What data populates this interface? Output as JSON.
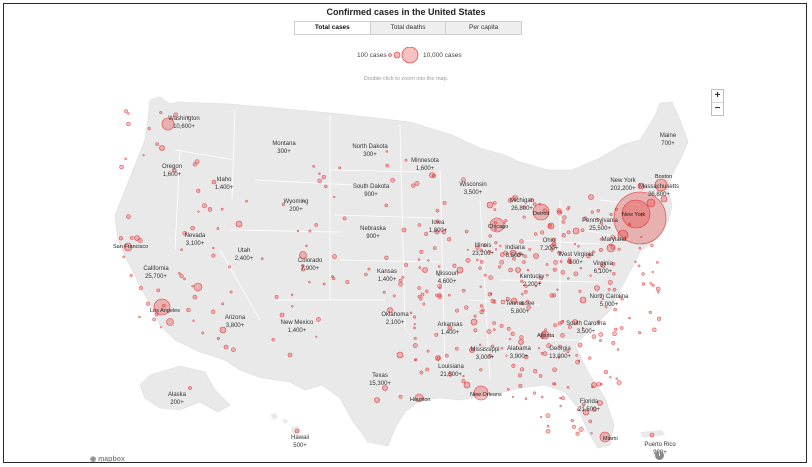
{
  "title": "Confirmed cases in the United States",
  "tabs": [
    {
      "label": "Total cases",
      "active": true
    },
    {
      "label": "Total deaths",
      "active": false
    },
    {
      "label": "Per capita",
      "active": false
    }
  ],
  "legend": {
    "small_label": "100 cases",
    "large_label": "10,000 cases"
  },
  "hint": "Double-click to zoom into the map.",
  "zoom": {
    "in": "+",
    "out": "−"
  },
  "attribution": "mapbox",
  "info": "i",
  "colors": {
    "land": "#e9e9e9",
    "border": "#ffffff",
    "bubble_fill": "rgba(230,50,50,0.30)",
    "bubble_stroke": "#e23b3b",
    "water": "#ffffff"
  },
  "states": [
    {
      "name": "Washington",
      "value": "10,600+"
    },
    {
      "name": "Oregon",
      "value": "1,600+"
    },
    {
      "name": "Idaho",
      "value": "1,400+"
    },
    {
      "name": "Montana",
      "value": "300+"
    },
    {
      "name": "Wyoming",
      "value": "200+"
    },
    {
      "name": "Nevada",
      "value": "3,100+"
    },
    {
      "name": "Utah",
      "value": "2,400+"
    },
    {
      "name": "California",
      "value": "25,700+"
    },
    {
      "name": "Arizona",
      "value": "3,800+"
    },
    {
      "name": "Colorado",
      "value": "7,900+"
    },
    {
      "name": "New Mexico",
      "value": "1,400+"
    },
    {
      "name": "North Dakota",
      "value": "300+"
    },
    {
      "name": "South Dakota",
      "value": "900+"
    },
    {
      "name": "Nebraska",
      "value": "900+"
    },
    {
      "name": "Kansas",
      "value": "1,400+"
    },
    {
      "name": "Oklahoma",
      "value": "2,100+"
    },
    {
      "name": "Texas",
      "value": "15,300+"
    },
    {
      "name": "Minnesota",
      "value": "1,600+"
    },
    {
      "name": "Iowa",
      "value": "1,800+"
    },
    {
      "name": "Missouri",
      "value": "4,600+"
    },
    {
      "name": "Arkansas",
      "value": "1,400+"
    },
    {
      "name": "Louisiana",
      "value": "21,500+"
    },
    {
      "name": "Wisconsin",
      "value": "3,500+"
    },
    {
      "name": "Illinois",
      "value": "23,200+"
    },
    {
      "name": "Michigan",
      "value": "26,800+"
    },
    {
      "name": "Indiana",
      "value": "8,500+"
    },
    {
      "name": "Ohio",
      "value": "7,200+"
    },
    {
      "name": "Kentucky",
      "value": "2,200+"
    },
    {
      "name": "Tennessee",
      "value": "5,800+"
    },
    {
      "name": "Mississippi",
      "value": "3,000+"
    },
    {
      "name": "Alabama",
      "value": "3,900+"
    },
    {
      "name": "Georgia",
      "value": "13,900+"
    },
    {
      "name": "Florida",
      "value": "21,500+"
    },
    {
      "name": "South Carolina",
      "value": "3,500+"
    },
    {
      "name": "North Carolina",
      "value": "5,000+"
    },
    {
      "name": "Virginia",
      "value": "6,100+"
    },
    {
      "name": "West Virginia",
      "value": "600+"
    },
    {
      "name": "Pennsylvania",
      "value": "25,500+"
    },
    {
      "name": "New York",
      "value": "202,200+"
    },
    {
      "name": "Maryland",
      "value": ""
    },
    {
      "name": "Massachusetts",
      "value": "26,800+"
    },
    {
      "name": "Maine",
      "value": "700+"
    },
    {
      "name": "Alaska",
      "value": "200+"
    },
    {
      "name": "Hawaii",
      "value": "500+"
    },
    {
      "name": "Puerto Rico",
      "value": "900+"
    }
  ],
  "cities": [
    "San Francisco",
    "Los Angeles",
    "Chicago",
    "Detroit",
    "New Orleans",
    "Houston",
    "Atlanta",
    "Miami",
    "New York",
    "Boston"
  ]
}
